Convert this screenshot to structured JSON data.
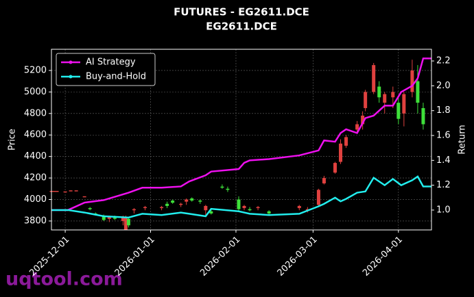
{
  "chart_data": {
    "type": "candlestick",
    "title": "FUTURES - EG2611.DCE",
    "subtitle": "EG2611.DCE",
    "y_label": "Price",
    "y2_label": "Return",
    "watermark": "uqtool.com",
    "xlim": [
      "2025-11-26",
      "2026-04-13"
    ],
    "xticks": [
      "2025-12-01",
      "2026-01-01",
      "2026-02-01",
      "2026-03-01",
      "2026-04-01"
    ],
    "ylim": [
      3717,
      5397
    ],
    "yticks": [
      3800,
      4000,
      4200,
      4400,
      4600,
      4800,
      5000,
      5200
    ],
    "y2lim": [
      0.84,
      2.294
    ],
    "y2ticks": [
      {
        "value": 1,
        "label": "1.0"
      },
      1.2,
      1.4,
      1.6,
      1.8,
      {
        "value": 2,
        "label": "2.0"
      },
      2.2
    ],
    "grid": true,
    "legend": "upper left",
    "up_color": "#e0413f",
    "down_color": "#3ee03a",
    "candles": {
      "x": [
        "2025-11-26",
        "2025-11-27",
        "2025-11-28",
        "2025-12-01",
        "2025-12-03",
        "2025-12-05",
        "2025-12-08",
        "2025-12-10",
        "2025-12-12",
        "2025-12-15",
        "2025-12-17",
        "2025-12-19",
        "2025-12-22",
        "2025-12-23",
        "2025-12-24",
        "2025-12-26",
        "2025-12-30",
        "2026-01-05",
        "2026-01-07",
        "2026-01-09",
        "2026-01-12",
        "2026-01-14",
        "2026-01-16",
        "2026-01-19",
        "2026-01-21",
        "2026-01-23",
        "2026-01-27",
        "2026-01-29",
        "2026-02-02",
        "2026-02-04",
        "2026-02-06",
        "2026-02-09",
        "2026-02-13",
        "2026-02-24",
        "2026-02-27",
        "2026-03-03",
        "2026-03-05",
        "2026-03-09",
        "2026-03-11",
        "2026-03-13",
        "2026-03-17",
        "2026-03-19",
        "2026-03-20",
        "2026-03-23",
        "2026-03-25",
        "2026-03-27",
        "2026-03-30",
        "2026-04-01",
        "2026-04-03",
        "2026-04-06",
        "2026-04-08",
        "2026-04-10"
      ],
      "open": [
        4080,
        4080,
        4080,
        4075,
        4085,
        4085,
        4030,
        3920,
        3870,
        3840,
        3820,
        3830,
        3800,
        3720,
        3820,
        3900,
        3920,
        3920,
        3960,
        3990,
        3950,
        3980,
        4010,
        3990,
        3900,
        3890,
        4120,
        4100,
        4000,
        3920,
        3910,
        3920,
        3890,
        3920,
        3900,
        3950,
        4150,
        4250,
        4350,
        4500,
        4650,
        4700,
        4850,
        5000,
        5050,
        4900,
        4950,
        4900,
        4800,
        5000,
        5100,
        4850
      ],
      "high": [
        4080,
        4080,
        4080,
        4075,
        4085,
        4085,
        4030,
        3930,
        3880,
        3860,
        3850,
        3850,
        3850,
        3850,
        3830,
        3920,
        3940,
        3940,
        3980,
        4000,
        3970,
        4010,
        4020,
        4000,
        3950,
        3920,
        4140,
        4120,
        4030,
        3950,
        3930,
        3940,
        3900,
        3950,
        3930,
        4100,
        4220,
        4350,
        4560,
        4600,
        4730,
        4820,
        5020,
        5270,
        5100,
        5000,
        5050,
        4950,
        5000,
        5300,
        5250,
        4900
      ],
      "low": [
        4080,
        4080,
        4080,
        4075,
        4085,
        4085,
        4030,
        3900,
        3850,
        3800,
        3790,
        3810,
        3760,
        3720,
        3740,
        3870,
        3900,
        3900,
        3920,
        3960,
        3930,
        3950,
        3980,
        3960,
        3850,
        3860,
        4100,
        4070,
        3890,
        3900,
        3890,
        3900,
        3860,
        3900,
        3880,
        3940,
        4140,
        4240,
        4330,
        4480,
        4620,
        4650,
        4820,
        4980,
        4900,
        4800,
        4850,
        4700,
        4680,
        4950,
        4800,
        4650
      ],
      "close": [
        4080,
        4080,
        4080,
        4075,
        4085,
        4085,
        4030,
        3910,
        3860,
        3810,
        3840,
        3820,
        3830,
        3840,
        3760,
        3910,
        3930,
        3930,
        3940,
        3970,
        3960,
        4000,
        3990,
        3980,
        3940,
        3870,
        4110,
        4090,
        3910,
        3940,
        3900,
        3930,
        3870,
        3940,
        3910,
        4090,
        4200,
        4340,
        4520,
        4580,
        4700,
        4780,
        5000,
        5250,
        4950,
        4980,
        5000,
        4750,
        4980,
        5200,
        4900,
        4700
      ]
    },
    "series": [
      {
        "name": "AI Strategy",
        "color": "#ee10ee",
        "axis": "y2",
        "x": [
          "2025-11-26",
          "2025-12-02",
          "2025-12-08",
          "2025-12-15",
          "2025-12-24",
          "2025-12-29",
          "2026-01-05",
          "2026-01-12",
          "2026-01-15",
          "2026-01-21",
          "2026-01-23",
          "2026-02-02",
          "2026-02-04",
          "2026-02-06",
          "2026-02-13",
          "2026-02-24",
          "2026-03-03",
          "2026-03-05",
          "2026-03-09",
          "2026-03-11",
          "2026-03-13",
          "2026-03-17",
          "2026-03-20",
          "2026-03-23",
          "2026-03-27",
          "2026-03-30",
          "2026-04-02",
          "2026-04-06",
          "2026-04-08",
          "2026-04-10",
          "2026-04-13"
        ],
        "values": [
          1.0,
          1.0,
          1.06,
          1.08,
          1.14,
          1.18,
          1.18,
          1.19,
          1.23,
          1.28,
          1.31,
          1.33,
          1.38,
          1.4,
          1.41,
          1.44,
          1.48,
          1.56,
          1.55,
          1.62,
          1.65,
          1.62,
          1.74,
          1.76,
          1.84,
          1.84,
          1.95,
          2.0,
          2.06,
          2.22,
          2.22
        ]
      },
      {
        "name": "Buy-and-Hold",
        "color": "#22eeee",
        "axis": "y2",
        "x": [
          "2025-11-26",
          "2025-12-02",
          "2025-12-08",
          "2025-12-15",
          "2025-12-24",
          "2025-12-29",
          "2026-01-05",
          "2026-01-12",
          "2026-01-15",
          "2026-01-21",
          "2026-01-23",
          "2026-02-02",
          "2026-02-04",
          "2026-02-06",
          "2026-02-13",
          "2026-02-24",
          "2026-03-03",
          "2026-03-05",
          "2026-03-09",
          "2026-03-11",
          "2026-03-13",
          "2026-03-17",
          "2026-03-20",
          "2026-03-23",
          "2026-03-27",
          "2026-03-30",
          "2026-04-02",
          "2026-04-06",
          "2026-04-08",
          "2026-04-10",
          "2026-04-13"
        ],
        "values": [
          1.0,
          1.0,
          0.98,
          0.95,
          0.94,
          0.97,
          0.96,
          0.98,
          0.97,
          0.95,
          1.01,
          0.99,
          0.98,
          0.97,
          0.96,
          0.97,
          1.03,
          1.05,
          1.1,
          1.07,
          1.09,
          1.14,
          1.15,
          1.26,
          1.2,
          1.25,
          1.2,
          1.24,
          1.27,
          1.19,
          1.19
        ]
      }
    ]
  }
}
